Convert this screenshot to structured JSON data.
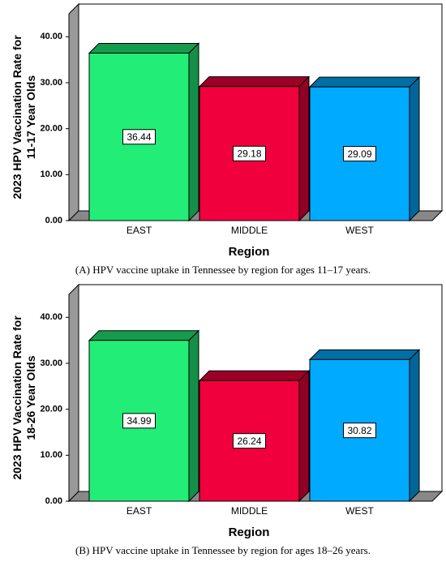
{
  "chart_data": [
    {
      "type": "bar3d",
      "ylabel": [
        "2023 HPV Vaccination Rate for",
        "11-17 Year Olds"
      ],
      "xlabel": "Region",
      "categories": [
        "EAST",
        "MIDDLE",
        "WEST"
      ],
      "values": [
        36.44,
        29.18,
        29.09
      ],
      "colors": [
        "#22ee77",
        "#f0003c",
        "#00aaff"
      ],
      "ylim": [
        0,
        45
      ],
      "yticks": [
        {
          "value": 0,
          "label": "0.00"
        },
        {
          "value": 10,
          "label": "10.00"
        },
        {
          "value": 20,
          "label": "20.00"
        },
        {
          "value": 30,
          "label": "30.00"
        },
        {
          "value": 40,
          "label": "40.00"
        }
      ],
      "grid": false,
      "caption": "(A) HPV vaccine uptake in Tennessee by region for ages 11–17 years."
    },
    {
      "type": "bar3d",
      "ylabel": [
        "2023 HPV Vaccination Rate for",
        "18-26 Year Olds"
      ],
      "xlabel": "Region",
      "categories": [
        "EAST",
        "MIDDLE",
        "WEST"
      ],
      "values": [
        34.99,
        26.24,
        30.82
      ],
      "colors": [
        "#22ee77",
        "#f0003c",
        "#00aaff"
      ],
      "ylim": [
        0,
        45
      ],
      "yticks": [
        {
          "value": 0,
          "label": "0.00"
        },
        {
          "value": 10,
          "label": "10.00"
        },
        {
          "value": 20,
          "label": "20.00"
        },
        {
          "value": 30,
          "label": "30.00"
        },
        {
          "value": 40,
          "label": "40.00"
        }
      ],
      "grid": false,
      "caption": "(B) HPV vaccine uptake in Tennessee by region for ages 18–26 years."
    }
  ]
}
